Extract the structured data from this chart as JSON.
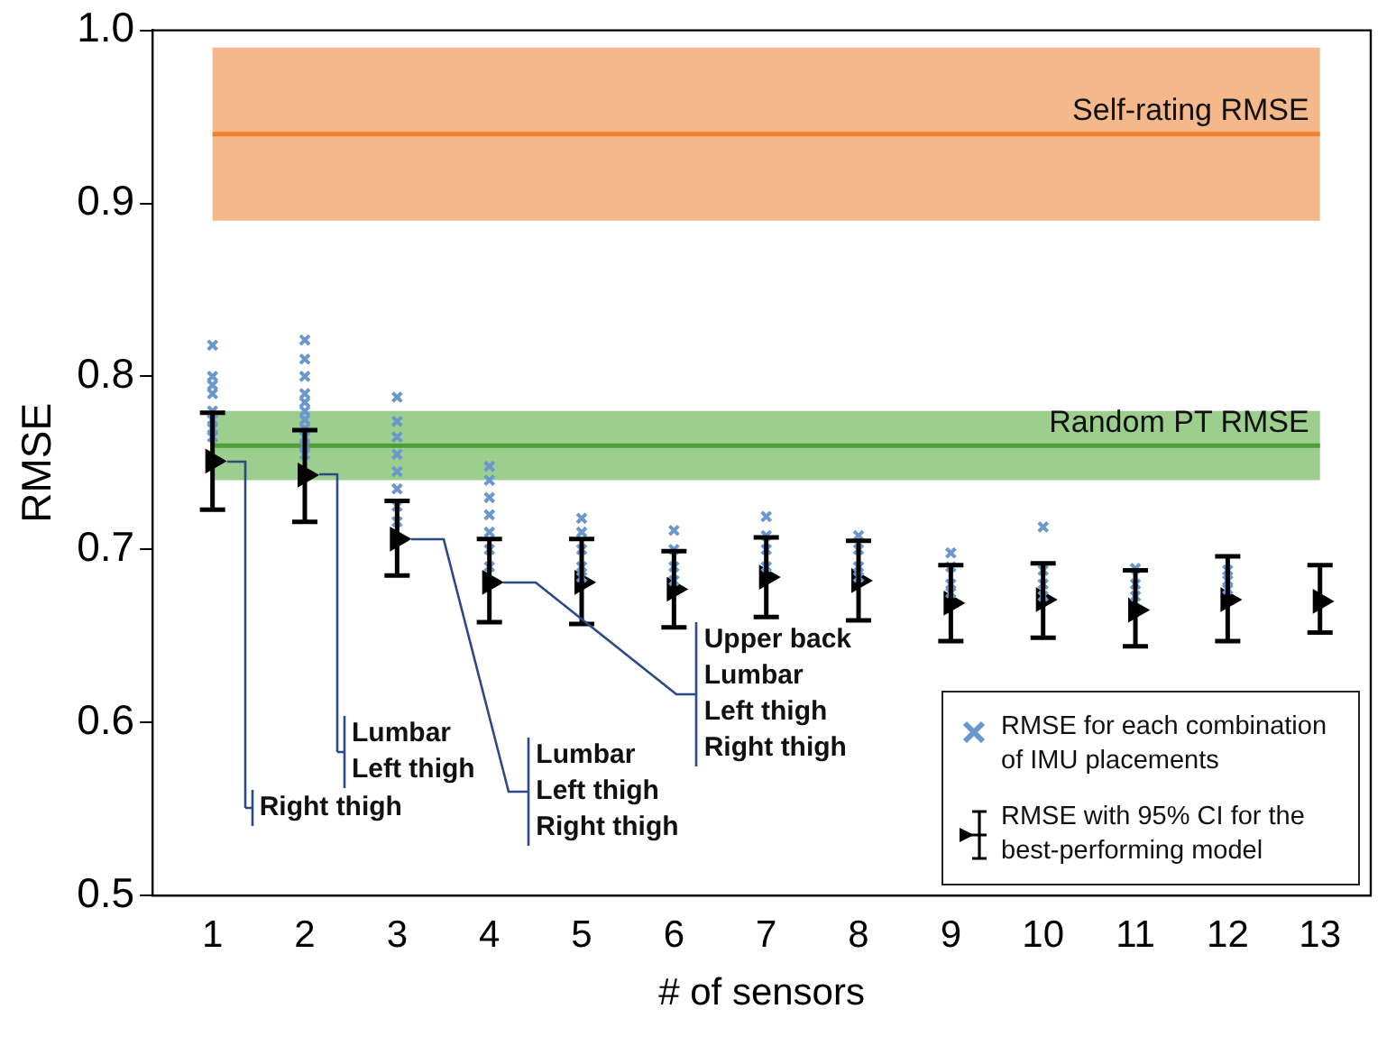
{
  "chart_data": {
    "type": "scatter",
    "xlabel": "# of sensors",
    "ylabel": "RMSE",
    "xlim": [
      0.35,
      13.55
    ],
    "xticks": [
      1,
      2,
      3,
      4,
      5,
      6,
      7,
      8,
      9,
      10,
      11,
      12,
      13
    ],
    "ylim": [
      0.5,
      1.0
    ],
    "yticks": [
      0.5,
      0.6,
      0.7,
      0.8,
      0.9,
      {
        "value": 1.0,
        "label": "1.0"
      }
    ],
    "grid": false,
    "legend": "bottom right",
    "series": [
      {
        "name": "RMSE for each combination of IMU placements",
        "color": "#6b97cf",
        "marker": "cross",
        "x": [
          1,
          1,
          1,
          1,
          1,
          1,
          1,
          1,
          2,
          2,
          2,
          2,
          2,
          2,
          2,
          2,
          2,
          2,
          2,
          3,
          3,
          3,
          3,
          3,
          3,
          3,
          3,
          4,
          4,
          4,
          4,
          4,
          4,
          4,
          5,
          5,
          5,
          5,
          5,
          6,
          6,
          6,
          6,
          7,
          7,
          7,
          7,
          8,
          8,
          8,
          8,
          9,
          9,
          9,
          9,
          10,
          10,
          10,
          10,
          11,
          11,
          11,
          12,
          12,
          12
        ],
        "values": [
          0.818,
          0.8,
          0.795,
          0.79,
          0.78,
          0.775,
          0.77,
          0.765,
          0.821,
          0.81,
          0.8,
          0.79,
          0.785,
          0.78,
          0.775,
          0.77,
          0.765,
          0.76,
          0.755,
          0.788,
          0.774,
          0.765,
          0.755,
          0.745,
          0.735,
          0.725,
          0.716,
          0.748,
          0.74,
          0.73,
          0.72,
          0.71,
          0.7,
          0.69,
          0.718,
          0.71,
          0.7,
          0.69,
          0.684,
          0.711,
          0.7,
          0.69,
          0.682,
          0.719,
          0.708,
          0.7,
          0.69,
          0.708,
          0.7,
          0.69,
          0.684,
          0.698,
          0.69,
          0.68,
          0.675,
          0.713,
          0.688,
          0.68,
          0.673,
          0.689,
          0.68,
          0.673,
          0.688,
          0.682,
          0.677
        ]
      },
      {
        "name": "RMSE with 95% CI for the best-performing model",
        "color": "#000000",
        "marker": "triangle",
        "x": [
          1,
          2,
          3,
          4,
          5,
          6,
          7,
          8,
          9,
          10,
          11,
          12,
          13
        ],
        "values": [
          0.751,
          0.743,
          0.706,
          0.681,
          0.681,
          0.677,
          0.684,
          0.682,
          0.669,
          0.671,
          0.665,
          0.671,
          0.67
        ],
        "errors": [
          [
            0.723,
            0.779
          ],
          [
            0.716,
            0.769
          ],
          [
            0.685,
            0.728
          ],
          [
            0.658,
            0.706
          ],
          [
            0.657,
            0.706
          ],
          [
            0.655,
            0.699
          ],
          [
            0.661,
            0.707
          ],
          [
            0.659,
            0.705
          ],
          [
            0.647,
            0.691
          ],
          [
            0.649,
            0.692
          ],
          [
            0.644,
            0.688
          ],
          [
            0.647,
            0.696
          ],
          [
            0.652,
            0.691
          ]
        ]
      }
    ],
    "ref_lines": [
      {
        "axis": "y",
        "value": 0.94,
        "label": "Self-rating RMSE",
        "color": "#f0812d"
      },
      {
        "axis": "y",
        "value": 0.76,
        "label": "Random PT RMSE",
        "color": "#4f9e3a"
      }
    ],
    "bands": [
      {
        "axis": "y",
        "from": 0.89,
        "to": 0.99,
        "color": "#f5b88a"
      },
      {
        "axis": "y",
        "from": 0.74,
        "to": 0.78,
        "color": "#9ccf8e"
      }
    ],
    "annotations": [
      {
        "text": "Right thigh",
        "x": 1,
        "y": 0.751
      },
      {
        "text": "Lumbar\nLeft thigh",
        "x": 2,
        "y": 0.743
      },
      {
        "text": "Lumbar\nLeft thigh\nRight thigh",
        "x": 3,
        "y": 0.706
      },
      {
        "text": "Upper back\nLumbar\nLeft thigh\nRight thigh",
        "x": 4,
        "y": 0.681
      }
    ]
  }
}
